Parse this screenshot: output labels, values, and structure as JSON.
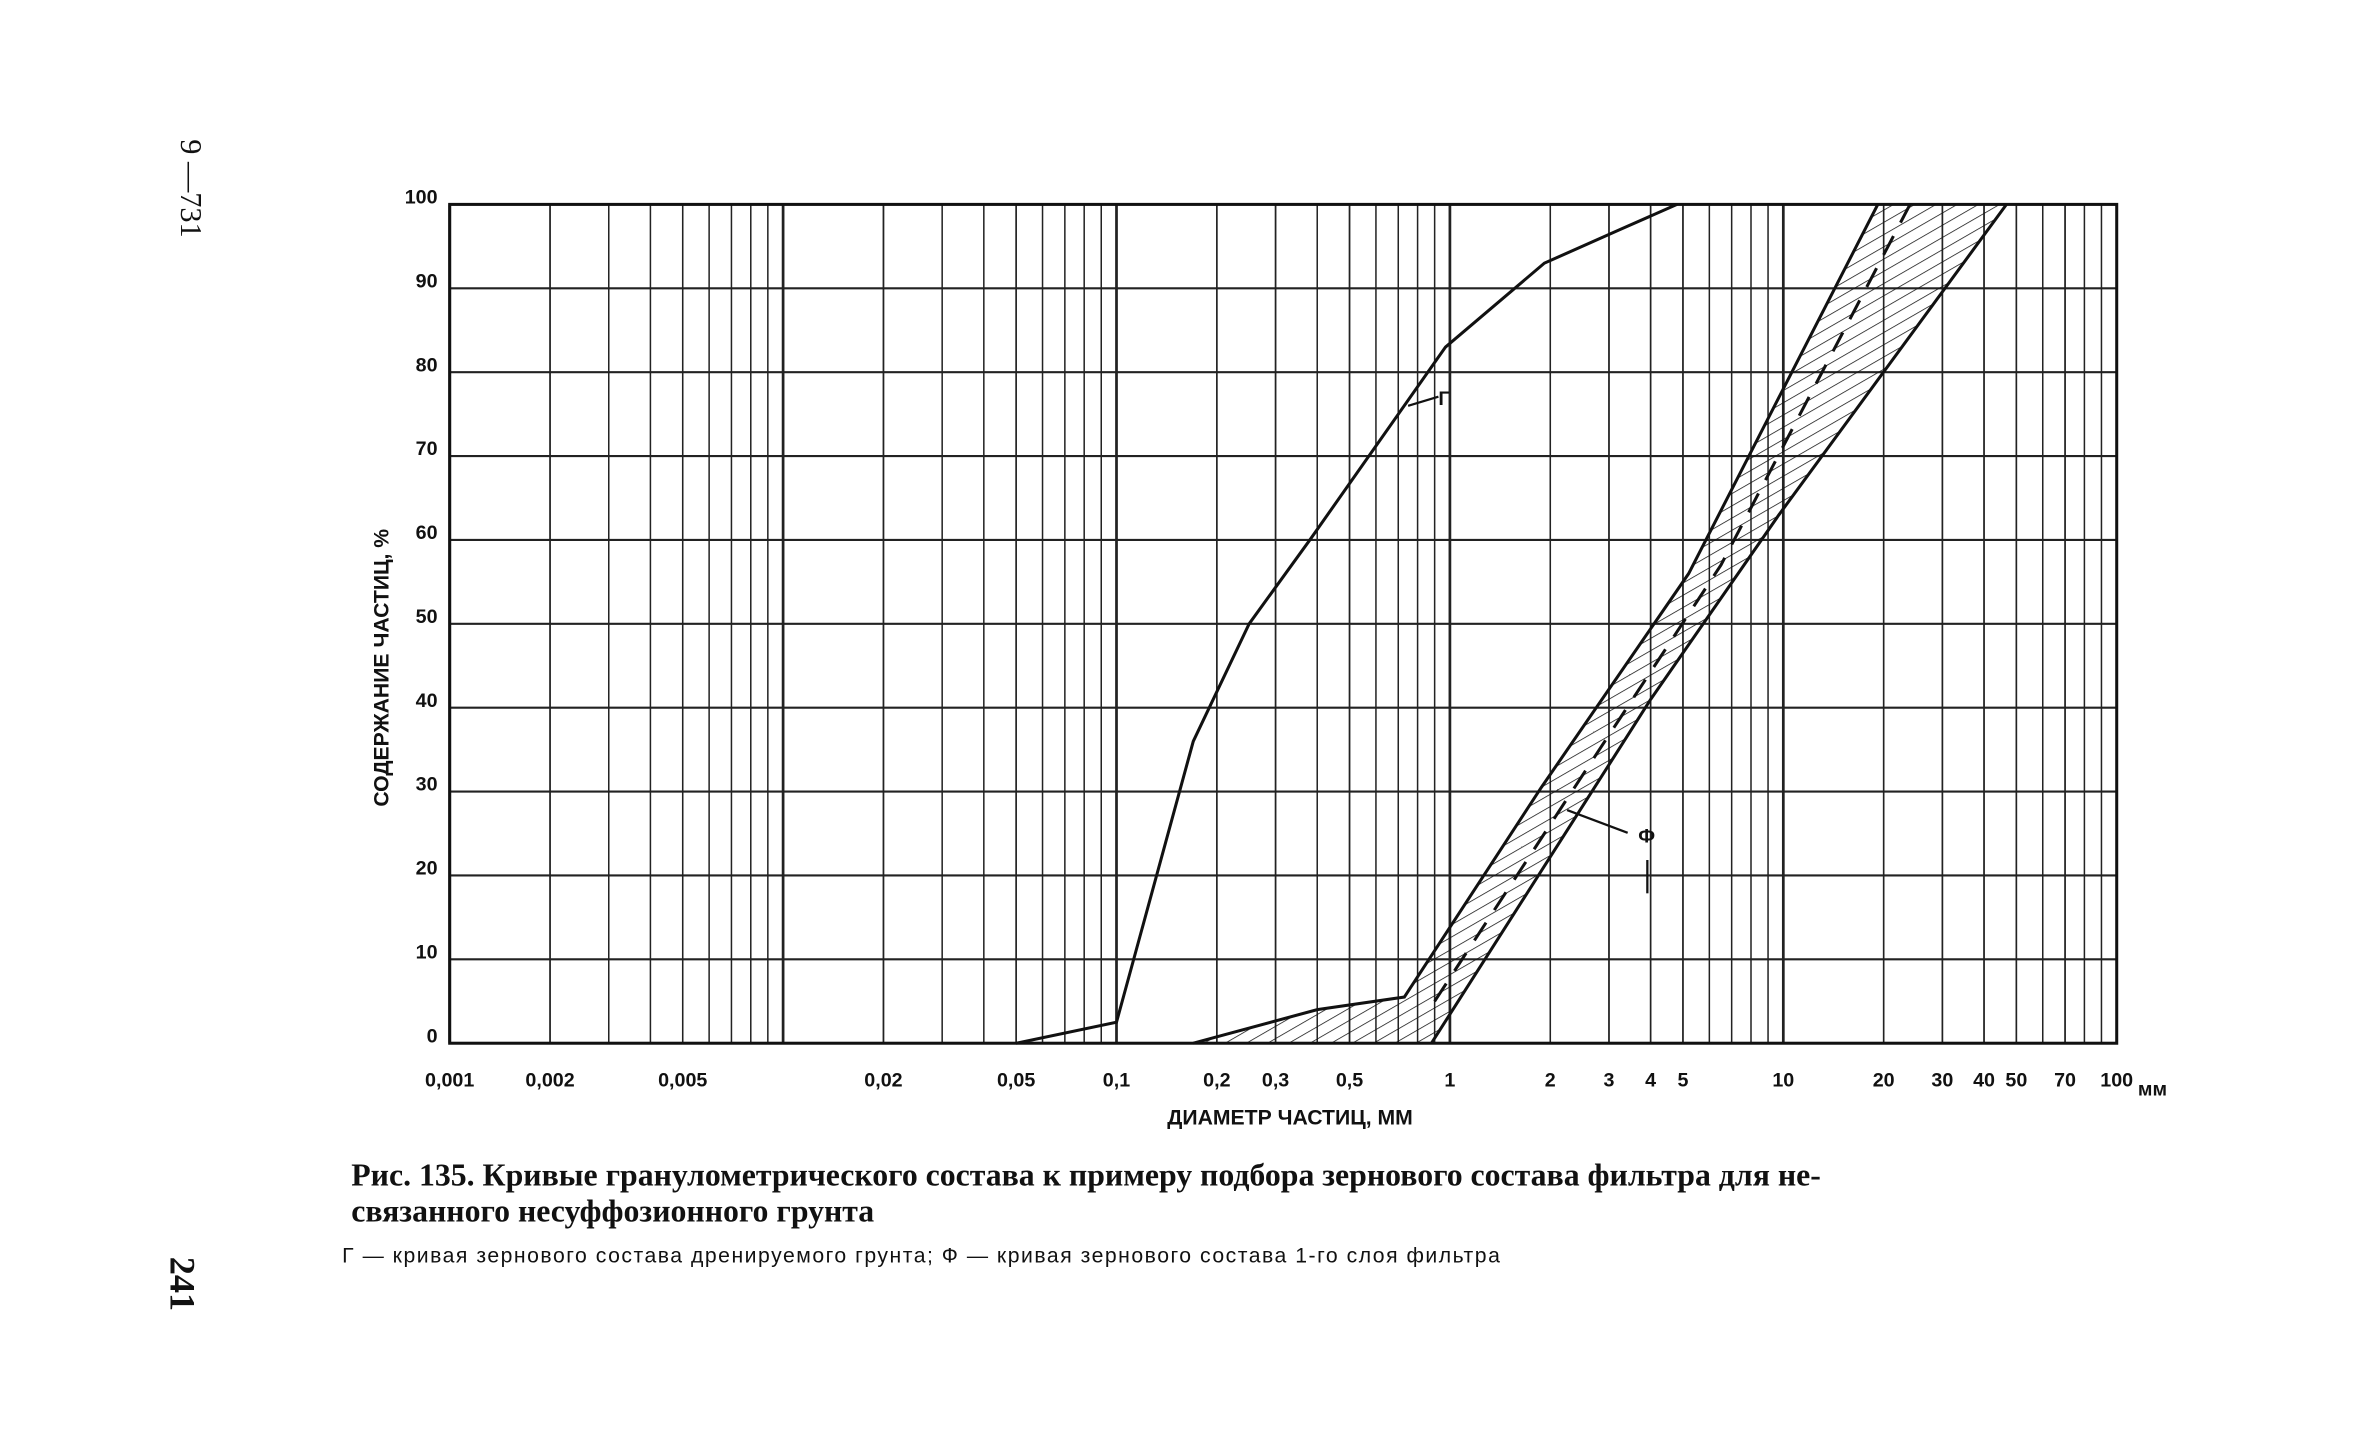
{
  "side_label": "9 —731",
  "page_number": "241",
  "chart_data": {
    "type": "line",
    "x_scale": "log",
    "grid": true,
    "y_label": "СОДЕРЖАНИЕ ЧАСТИЦ, %",
    "x_label": "ДИАМЕТР ЧАСТИЦ, ММ",
    "x_unit": "мм",
    "xlim": [
      0.001,
      100
    ],
    "ylim": [
      0,
      100
    ],
    "yticks": [
      0,
      10,
      20,
      30,
      40,
      50,
      60,
      70,
      80,
      90,
      100
    ],
    "xticks": [
      {
        "value": 0.001,
        "label": "0,001"
      },
      {
        "value": 0.002,
        "label": "0,002"
      },
      {
        "value": 0.005,
        "label": "0,005"
      },
      {
        "value": 0.02,
        "label": "0,02"
      },
      {
        "value": 0.05,
        "label": "0,05"
      },
      {
        "value": 0.1,
        "label": "0,1"
      },
      {
        "value": 0.2,
        "label": "0,2"
      },
      {
        "value": 0.3,
        "label": "0,3"
      },
      {
        "value": 0.5,
        "label": "0,5"
      },
      1,
      2,
      3,
      4,
      5,
      10,
      20,
      30,
      40,
      50,
      70,
      100
    ],
    "series": [
      {
        "name": "Г",
        "color": "#111",
        "x": [
          0.05,
          0.1,
          0.17,
          0.25,
          0.38,
          0.97,
          1.92,
          3.24,
          4.8
        ],
        "values": [
          0,
          2.5,
          36,
          50,
          60,
          83,
          93,
          97,
          100
        ]
      },
      {
        "name": "Ф",
        "color": "#111",
        "x_upper": [
          0.17,
          0.4,
          0.73,
          1.88,
          5.2,
          19.2
        ],
        "upper": [
          0,
          4,
          5.5,
          30.5,
          56,
          100
        ],
        "x_lower": [
          0.88,
          4,
          9.7,
          46.7
        ],
        "lower": [
          0,
          41,
          63,
          100
        ],
        "x_middle": [
          0.9,
          2.6,
          6.5,
          24
        ],
        "middle": [
          5,
          33,
          57,
          100
        ]
      }
    ],
    "caption": [
      "Рис. 135. Кривые гранулометрического состава к примеру подбора зернового состава  фильтра для не-",
      "связанного несуффозионного грунта"
    ],
    "note": "Г — кривая зернового состава дренируемого грунта; Ф — кривая зернового состава 1-го слоя фильтра"
  }
}
